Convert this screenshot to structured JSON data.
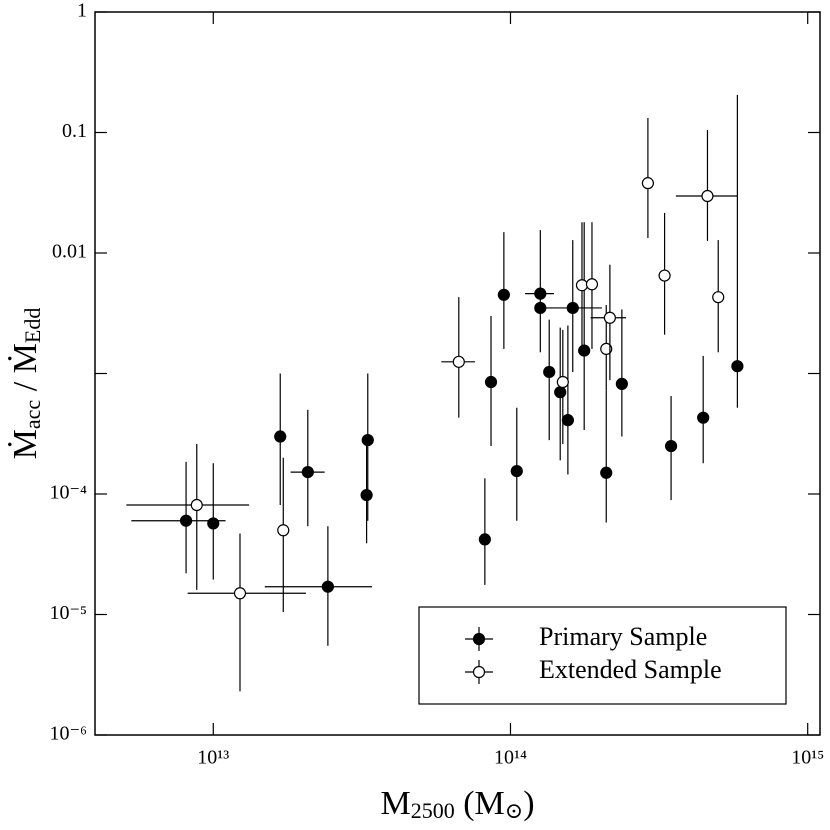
{
  "chart_data": {
    "type": "scatter",
    "xlabel": [
      "M",
      "2500",
      " (M",
      "⊙",
      ")"
    ],
    "ylabel": [
      "Ṁ",
      "acc",
      " / Ṁ",
      "Edd"
    ],
    "xscale": "log",
    "yscale": "log",
    "xlim": [
      4000000000000.0,
      1100000000000000.0
    ],
    "ylim": [
      1e-06,
      1
    ],
    "xticks": [
      {
        "value": 10000000000000.0,
        "label": "10¹³"
      },
      {
        "value": 100000000000000.0,
        "label": "10¹⁴"
      },
      {
        "value": 1000000000000000.0,
        "label": "10¹⁵"
      }
    ],
    "yticks": [
      {
        "value": 1e-06,
        "label": "10⁻⁶"
      },
      {
        "value": 1e-05,
        "label": "10⁻⁵"
      },
      {
        "value": 0.0001,
        "label": "10⁻⁴"
      },
      {
        "value": 0.001,
        "label": null
      },
      0.01,
      0.1,
      1
    ],
    "legend": "lower right",
    "series": [
      {
        "name": "Primary Sample",
        "color": "#000000",
        "marker": "filled",
        "x": [
          8100000000000.0,
          10000000000000.0,
          16800000000000.0,
          20800000000000.0,
          24300000000000.0,
          33100000000000.0,
          32800000000000.0,
          82000000000000.0,
          86000000000000.0,
          95000000000000.0,
          105000000000000.0,
          126000000000000.0,
          126000000000000.0,
          135000000000000.0,
          147000000000000.0,
          156000000000000.0,
          162000000000000.0,
          177000000000000.0,
          210000000000000.0,
          237000000000000.0,
          347000000000000.0,
          445000000000000.0,
          580000000000000.0
        ],
        "values": [
          6e-05,
          5.7e-05,
          0.0003,
          0.000152,
          1.7e-05,
          0.00028,
          9.8e-05,
          4.2e-05,
          0.00085,
          0.0045,
          0.000155,
          0.0046,
          0.0035,
          0.00103,
          0.0007,
          0.00041,
          0.0035,
          0.00155,
          0.00015,
          0.00082,
          0.00025,
          0.00043,
          0.00115
        ],
        "xlow": [
          5300000000000.0,
          null,
          null,
          18200000000000.0,
          14900000000000.0,
          null,
          null,
          null,
          null,
          null,
          null,
          112000000000000.0,
          null,
          null,
          null,
          null,
          129000000000000.0,
          null,
          null,
          null,
          null,
          null,
          null
        ],
        "xhigh": [
          11000000000000.0,
          null,
          null,
          23700000000000.0,
          34200000000000.0,
          null,
          null,
          null,
          null,
          null,
          null,
          140000000000000.0,
          null,
          null,
          null,
          null,
          203000000000000.0,
          null,
          null,
          null,
          null,
          null,
          null
        ],
        "ylow": [
          2.2e-05,
          1.95e-05,
          8.1e-05,
          5.4e-05,
          5.5e-06,
          6e-05,
          3.9e-05,
          1.76e-05,
          0.00025,
          0.0016,
          6e-05,
          0.0015,
          null,
          0.00028,
          0.00019,
          0.000145,
          0.00103,
          0.00034,
          5.8e-05,
          0.0003,
          8.9e-05,
          0.00018,
          0.00052
        ],
        "yhigh": [
          0.000185,
          0.00018,
          0.001,
          0.0005,
          5.4e-05,
          0.001,
          0.00028,
          0.000135,
          0.003,
          0.0149,
          0.00052,
          0.0155,
          null,
          0.0028,
          0.0024,
          0.0025,
          0.0128,
          0.018,
          0.00072,
          0.0034,
          0.00065,
          0.0014,
          0.205
        ]
      },
      {
        "name": "Extended Sample",
        "color": "#ffffff",
        "marker": "open",
        "x": [
          8800000000000.0,
          12300000000000.0,
          17200000000000.0,
          67000000000000.0,
          150000000000000.0,
          174000000000000.0,
          188000000000000.0,
          210000000000000.0,
          216000000000000.0,
          290000000000000.0,
          330000000000000.0,
          460000000000000.0,
          500000000000000.0
        ],
        "values": [
          8.1e-05,
          1.5e-05,
          5e-05,
          0.00125,
          0.00085,
          0.0054,
          0.0055,
          0.0016,
          0.0029,
          0.038,
          0.0065,
          0.0297,
          0.0043
        ],
        "xlow": [
          5100000000000.0,
          8200000000000.0,
          null,
          58500000000000.0,
          null,
          null,
          null,
          null,
          186000000000000.0,
          null,
          null,
          360000000000000.0,
          null
        ],
        "xhigh": [
          13200000000000.0,
          20500000000000.0,
          null,
          76000000000000.0,
          null,
          null,
          null,
          null,
          245000000000000.0,
          null,
          null,
          580000000000000.0,
          null
        ],
        "ylow": [
          1.6e-05,
          2.3e-06,
          1.05e-05,
          0.00043,
          0.00026,
          0.00155,
          0.0016,
          0.00072,
          0.00088,
          0.0133,
          0.0021,
          0.0126,
          0.0015
        ],
        "yhigh": [
          0.00026,
          4.7e-05,
          0.0002,
          0.0043,
          0.0023,
          0.018,
          0.018,
          0.0037,
          0.008,
          0.132,
          0.0215,
          0.105,
          0.0128
        ]
      }
    ]
  }
}
